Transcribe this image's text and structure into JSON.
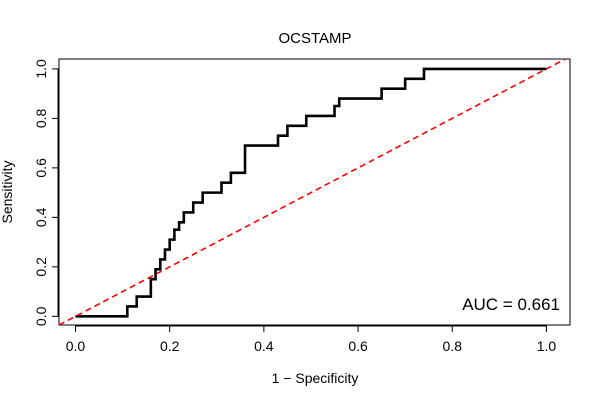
{
  "chart_data": {
    "type": "line",
    "title": "OCSTAMP",
    "xlabel": "1 − Specificity",
    "ylabel": "Sensitivity",
    "xlim": [
      -0.035,
      1.05
    ],
    "ylim": [
      -0.035,
      1.04
    ],
    "x_ticks": [
      0.0,
      0.2,
      0.4,
      0.6,
      0.8,
      1.0
    ],
    "x_tick_labels": [
      "0.0",
      "0.2",
      "0.4",
      "0.6",
      "0.8",
      "1.0"
    ],
    "y_ticks": [
      0.0,
      0.2,
      0.4,
      0.6,
      0.8,
      1.0
    ],
    "y_tick_labels": [
      "0.0",
      "0.2",
      "0.4",
      "0.6",
      "0.8",
      "1.0"
    ],
    "grid": false,
    "annotation": "AUC = 0.661",
    "series": [
      {
        "color": "#000000",
        "style": "solid-step",
        "x": [
          0.0,
          0.11,
          0.11,
          0.13,
          0.13,
          0.16,
          0.16,
          0.17,
          0.17,
          0.18,
          0.18,
          0.19,
          0.19,
          0.2,
          0.2,
          0.21,
          0.21,
          0.22,
          0.22,
          0.23,
          0.23,
          0.24,
          0.24,
          0.25,
          0.25,
          0.26,
          0.26,
          0.27,
          0.27,
          0.28,
          0.28,
          0.31,
          0.31,
          0.33,
          0.33,
          0.36,
          0.36,
          0.37,
          0.37,
          0.43,
          0.43,
          0.45,
          0.45,
          0.49,
          0.49,
          0.55,
          0.55,
          0.56,
          0.56,
          0.65,
          0.65,
          0.7,
          0.7,
          0.74,
          0.74,
          1.0
        ],
        "y": [
          0.0,
          0.0,
          0.04,
          0.04,
          0.08,
          0.08,
          0.15,
          0.15,
          0.19,
          0.19,
          0.23,
          0.23,
          0.27,
          0.27,
          0.31,
          0.31,
          0.35,
          0.35,
          0.38,
          0.38,
          0.42,
          0.42,
          0.42,
          0.42,
          0.46,
          0.46,
          0.46,
          0.46,
          0.5,
          0.5,
          0.5,
          0.5,
          0.54,
          0.54,
          0.58,
          0.58,
          0.69,
          0.69,
          0.69,
          0.69,
          0.73,
          0.73,
          0.77,
          0.77,
          0.81,
          0.81,
          0.85,
          0.85,
          0.88,
          0.88,
          0.92,
          0.92,
          0.96,
          0.96,
          1.0,
          1.0
        ]
      },
      {
        "color": "#ff0000",
        "style": "dashed",
        "x": [
          -0.035,
          1.05
        ],
        "y": [
          -0.035,
          1.05
        ]
      }
    ]
  }
}
